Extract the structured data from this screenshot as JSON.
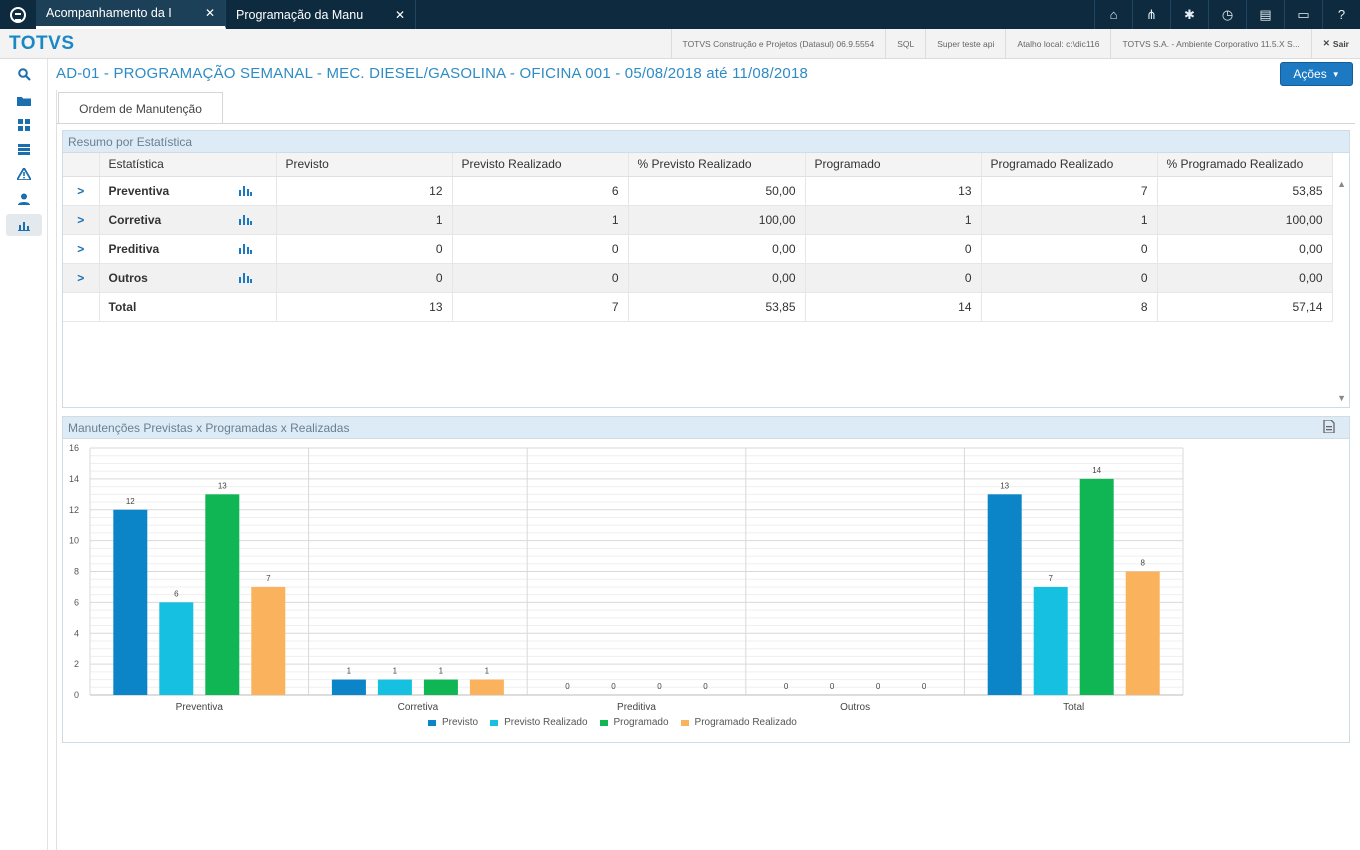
{
  "tabs": [
    {
      "label": "Acompanhamento da I",
      "active": true
    },
    {
      "label": "Programação da Manu",
      "active": false
    }
  ],
  "top_icons": [
    "home-icon",
    "sitemap-icon",
    "settings-icon",
    "clock-icon",
    "document-icon",
    "card-icon",
    "help-icon"
  ],
  "brand": "TOTVS",
  "infobar": {
    "items": [
      "TOTVS Construção e Projetos (Datasul) 06.9.5554",
      "SQL",
      "Super teste api",
      "Atalho local: c:\\dic116",
      "TOTVS S.A. - Ambiente Corporativo 11.5.X S..."
    ],
    "exit_label": "Sair"
  },
  "sidebar_icons": [
    "search-icon",
    "folder-icon",
    "apps-icon",
    "list-icon",
    "warning-icon",
    "user-icon",
    "chart-icon"
  ],
  "page": {
    "title": "AD-01 - PROGRAMAÇÃO SEMANAL - MEC. DIESEL/GASOLINA - OFICINA 001 - 05/08/2018 até 11/08/2018",
    "actions_label": "Ações",
    "content_tab": "Ordem de Manutenção"
  },
  "summary": {
    "title": "Resumo por Estatística",
    "columns": [
      "Estatística",
      "Previsto",
      "Previsto Realizado",
      "% Previsto Realizado",
      "Programado",
      "Programado Realizado",
      "% Programado Realizado"
    ],
    "rows": [
      {
        "name": "Preventiva",
        "cells": [
          "12",
          "6",
          "50,00",
          "13",
          "7",
          "53,85"
        ]
      },
      {
        "name": "Corretiva",
        "cells": [
          "1",
          "1",
          "100,00",
          "1",
          "1",
          "100,00"
        ]
      },
      {
        "name": "Preditiva",
        "cells": [
          "0",
          "0",
          "0,00",
          "0",
          "0",
          "0,00"
        ]
      },
      {
        "name": "Outros",
        "cells": [
          "0",
          "0",
          "0,00",
          "0",
          "0",
          "0,00"
        ]
      }
    ],
    "total": {
      "name": "Total",
      "cells": [
        "13",
        "7",
        "53,85",
        "14",
        "8",
        "57,14"
      ]
    }
  },
  "chart_panel_title": "Manutenções Previstas x Programadas x Realizadas",
  "chart_data": {
    "type": "bar",
    "categories": [
      "Preventiva",
      "Corretiva",
      "Preditiva",
      "Outros",
      "Total"
    ],
    "series": [
      {
        "name": "Previsto",
        "values": [
          12,
          1,
          0,
          0,
          13
        ],
        "color": "#0b84c8"
      },
      {
        "name": "Previsto Realizado",
        "values": [
          6,
          1,
          0,
          0,
          7
        ],
        "color": "#16c0e0"
      },
      {
        "name": "Programado",
        "values": [
          13,
          1,
          0,
          0,
          14
        ],
        "color": "#10b653"
      },
      {
        "name": "Programado Realizado",
        "values": [
          7,
          1,
          0,
          0,
          8
        ],
        "color": "#fbb25c"
      }
    ],
    "ylim": [
      0,
      16
    ],
    "yticks": [
      0,
      2,
      4,
      6,
      8,
      10,
      12,
      14,
      16
    ],
    "legend": "bottom",
    "grid": true
  }
}
